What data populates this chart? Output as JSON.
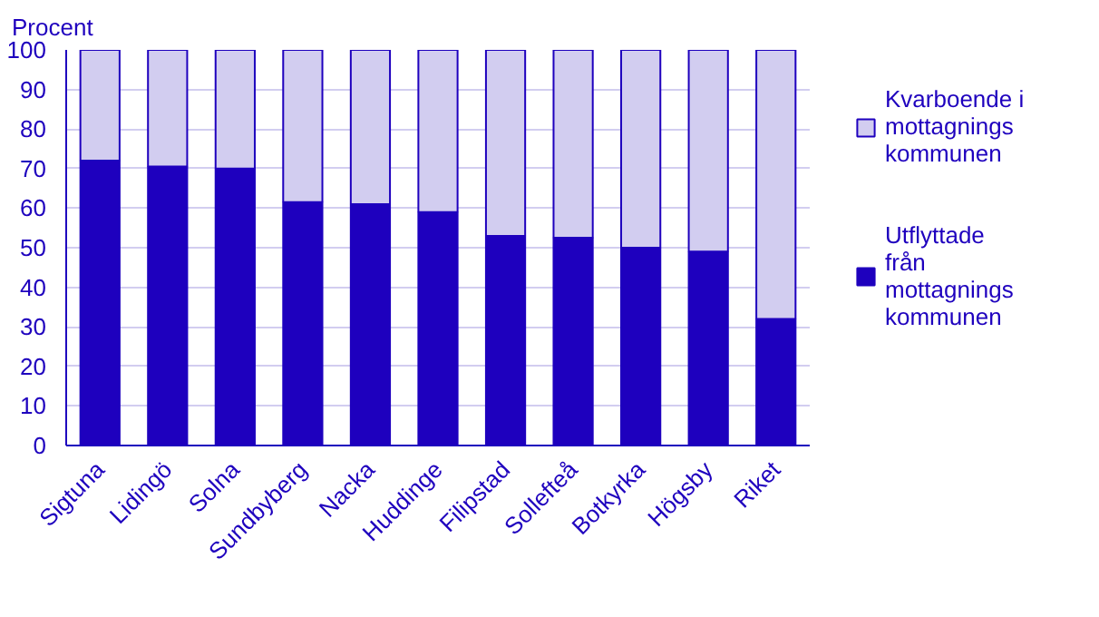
{
  "chart_data": {
    "type": "bar",
    "stacked": true,
    "ylabel": "Procent",
    "categories": [
      "Sigtuna",
      "Lidingö",
      "Solna",
      "Sundbyberg",
      "Nacka",
      "Huddinge",
      "Filipstad",
      "Sollefteå",
      "Botkyrka",
      "Högsby",
      "Riket"
    ],
    "series": [
      {
        "name": "Utflyttade från mottagnings kommunen",
        "color": "#1e00be",
        "values": [
          72,
          70.5,
          70,
          61.5,
          61,
          59,
          53,
          52.5,
          50,
          49,
          32
        ]
      },
      {
        "name": "Kvarboende i mottagnings kommunen",
        "color": "#d2cdf0",
        "values": [
          28,
          29.5,
          30,
          38.5,
          39,
          41,
          47,
          47.5,
          50,
          51,
          68
        ]
      }
    ],
    "ylim": [
      0,
      100
    ],
    "yticks": [
      0,
      10,
      20,
      30,
      40,
      50,
      60,
      70,
      80,
      90,
      100
    ],
    "grid": "y",
    "legend": "right"
  }
}
